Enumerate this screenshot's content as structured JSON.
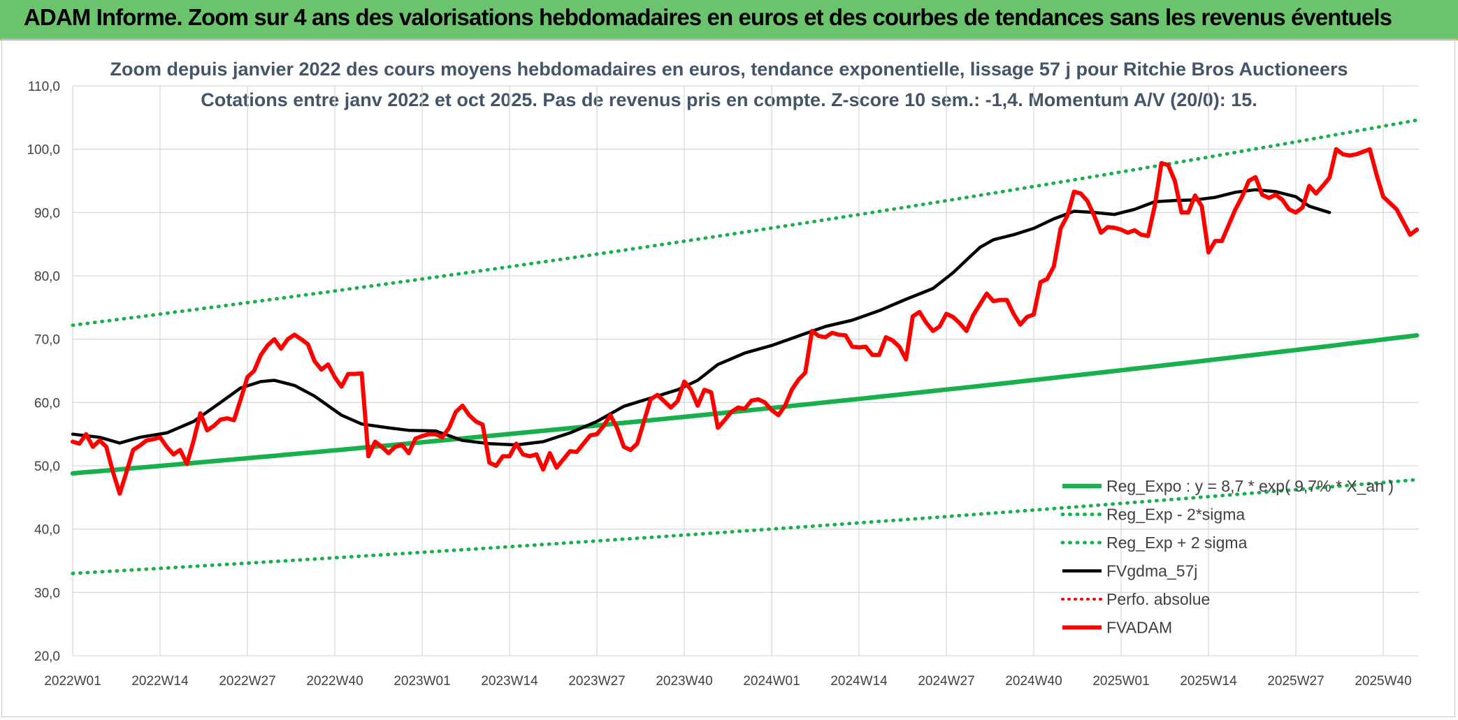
{
  "header": {
    "title": "ADAM Informe. Zoom sur 4 ans des valorisations hebdomadaires en euros et des courbes de tendances sans les revenus éventuels"
  },
  "chart_data": {
    "type": "line",
    "title": "Zoom depuis janvier 2022 des cours moyens hebdomadaires en euros, tendance exponentielle, lissage 57 j pour Ritchie Bros Auctioneers",
    "subtitle": "Cotations entre janv 2022 et oct 2025. Pas de revenus pris en compte. Z-score 10 sem.: -1,4. Momentum A/V (20/0): 15.",
    "ylim": [
      20,
      110
    ],
    "y_ticks": [
      "20,0",
      "30,0",
      "40,0",
      "50,0",
      "60,0",
      "70,0",
      "80,0",
      "90,0",
      "100,0",
      "110,0"
    ],
    "x_ticks": [
      "2022W01",
      "2022W14",
      "2022W27",
      "2022W40",
      "2023W01",
      "2023W14",
      "2023W27",
      "2023W40",
      "2024W01",
      "2024W14",
      "2024W27",
      "2024W40",
      "2025W01",
      "2025W14",
      "2025W27",
      "2025W40"
    ],
    "grid": true,
    "legend_position": "bottom-right",
    "colors": {
      "green": "#18b04c",
      "black": "#000000",
      "red": "#ff0000",
      "grid": "#d9d9d9",
      "title_text": "#44546a"
    },
    "legend": [
      {
        "label": "Reg_Expo : y = 8,7 * exp( 9,7% * X_an )",
        "style": "solid-green"
      },
      {
        "label": "Reg_Exp - 2*sigma",
        "style": "dotted-green"
      },
      {
        "label": "Reg_Exp + 2 sigma",
        "style": "dotted-green"
      },
      {
        "label": "FVgdma_57j",
        "style": "solid-black"
      },
      {
        "label": "Perfo. absolue",
        "style": "dotted-red"
      },
      {
        "label": "FVADAM",
        "style": "solid-red"
      }
    ],
    "series": [
      {
        "name": "Reg_Expo : y = 8,7 * exp( 9,7% * X_an )",
        "style": "solid-green",
        "start": 48.8,
        "end": 70.6
      },
      {
        "name": "Reg_Exp - 2*sigma",
        "style": "dotted-green",
        "start": 33.0,
        "end": 47.8
      },
      {
        "name": "Reg_Exp + 2 sigma",
        "style": "dotted-green",
        "start": 72.2,
        "end": 104.6
      },
      {
        "name": "FVgdma_57j",
        "style": "solid-black",
        "points": [
          [
            0,
            55
          ],
          [
            4,
            54.5
          ],
          [
            7,
            53.6
          ],
          [
            10,
            54.5
          ],
          [
            14,
            55.2
          ],
          [
            18,
            57
          ],
          [
            22,
            60
          ],
          [
            25,
            62.3
          ],
          [
            28,
            63.3
          ],
          [
            30,
            63.5
          ],
          [
            33,
            62.7
          ],
          [
            36,
            61
          ],
          [
            40,
            58
          ],
          [
            43,
            56.6
          ],
          [
            47,
            56
          ],
          [
            50,
            55.6
          ],
          [
            54,
            55.5
          ],
          [
            58,
            54
          ],
          [
            62,
            53.5
          ],
          [
            66,
            53.3
          ],
          [
            70,
            53.8
          ],
          [
            74,
            55.2
          ],
          [
            78,
            57
          ],
          [
            82,
            59.4
          ],
          [
            86,
            60.7
          ],
          [
            90,
            62
          ],
          [
            93,
            63.5
          ],
          [
            96,
            66
          ],
          [
            100,
            67.8
          ],
          [
            104,
            69
          ],
          [
            108,
            70.5
          ],
          [
            112,
            72
          ],
          [
            116,
            73
          ],
          [
            120,
            74.5
          ],
          [
            124,
            76.3
          ],
          [
            128,
            78
          ],
          [
            131,
            80.5
          ],
          [
            133,
            82.5
          ],
          [
            135,
            84.5
          ],
          [
            137,
            85.7
          ],
          [
            140,
            86.5
          ],
          [
            143,
            87.5
          ],
          [
            146,
            89
          ],
          [
            149,
            90.2
          ],
          [
            152,
            90
          ],
          [
            155,
            89.7
          ],
          [
            158,
            90.5
          ],
          [
            161,
            91.7
          ],
          [
            164,
            91.9
          ],
          [
            167,
            92
          ],
          [
            170,
            92.4
          ],
          [
            173,
            93.2
          ],
          [
            176,
            93.6
          ],
          [
            179,
            93.3
          ],
          [
            182,
            92.5
          ],
          [
            184,
            91
          ],
          [
            187,
            90
          ]
        ]
      },
      {
        "name": "FVADAM",
        "style": "solid-red",
        "points": [
          [
            0,
            53.8
          ],
          [
            1,
            53.5
          ],
          [
            2,
            55
          ],
          [
            3,
            53
          ],
          [
            4,
            54
          ],
          [
            5,
            53
          ],
          [
            6,
            49
          ],
          [
            7,
            45.6
          ],
          [
            8,
            49
          ],
          [
            9,
            52.5
          ],
          [
            10,
            53.2
          ],
          [
            11,
            54
          ],
          [
            12,
            54.2
          ],
          [
            13,
            54.5
          ],
          [
            14,
            53
          ],
          [
            15,
            51.8
          ],
          [
            16,
            52.5
          ],
          [
            17,
            50.3
          ],
          [
            18,
            54
          ],
          [
            19,
            58.3
          ],
          [
            20,
            55.6
          ],
          [
            21,
            56.3
          ],
          [
            22,
            57.3
          ],
          [
            23,
            57.5
          ],
          [
            24,
            57.2
          ],
          [
            25,
            60.5
          ],
          [
            26,
            64
          ],
          [
            27,
            65
          ],
          [
            28,
            67.5
          ],
          [
            29,
            69
          ],
          [
            30,
            70
          ],
          [
            31,
            68.5
          ],
          [
            32,
            70
          ],
          [
            33,
            70.7
          ],
          [
            34,
            70
          ],
          [
            35,
            69.2
          ],
          [
            36,
            66.5
          ],
          [
            37,
            65.2
          ],
          [
            38,
            66
          ],
          [
            39,
            64
          ],
          [
            40,
            62.5
          ],
          [
            41,
            64.5
          ],
          [
            42,
            64.5
          ],
          [
            43,
            64.6
          ],
          [
            44,
            51.5
          ],
          [
            45,
            53.8
          ],
          [
            46,
            53
          ],
          [
            47,
            52
          ],
          [
            48,
            53
          ],
          [
            49,
            53.3
          ],
          [
            50,
            52
          ],
          [
            51,
            54.3
          ],
          [
            52,
            54.7
          ],
          [
            53,
            55
          ],
          [
            54,
            55
          ],
          [
            55,
            54.5
          ],
          [
            56,
            56
          ],
          [
            57,
            58.5
          ],
          [
            58,
            59.5
          ],
          [
            59,
            58
          ],
          [
            60,
            57
          ],
          [
            61,
            56.5
          ],
          [
            62,
            50.5
          ],
          [
            63,
            50
          ],
          [
            64,
            51.5
          ],
          [
            65,
            51.5
          ],
          [
            66,
            53.5
          ],
          [
            67,
            51.8
          ],
          [
            68,
            51.5
          ],
          [
            69,
            51.8
          ],
          [
            70,
            49.4
          ],
          [
            71,
            52
          ],
          [
            72,
            49.7
          ],
          [
            73,
            51
          ],
          [
            74,
            52.3
          ],
          [
            75,
            52.2
          ],
          [
            76,
            53.5
          ],
          [
            77,
            54.8
          ],
          [
            78,
            55
          ],
          [
            79,
            56.3
          ],
          [
            80,
            58
          ],
          [
            81,
            56
          ],
          [
            82,
            53
          ],
          [
            83,
            52.5
          ],
          [
            84,
            53.5
          ],
          [
            85,
            57
          ],
          [
            86,
            60.5
          ],
          [
            87,
            61.2
          ],
          [
            88,
            60.2
          ],
          [
            89,
            59.2
          ],
          [
            90,
            60.2
          ],
          [
            91,
            63.3
          ],
          [
            92,
            62
          ],
          [
            93,
            59.5
          ],
          [
            94,
            62
          ],
          [
            95,
            61.6
          ],
          [
            96,
            56
          ],
          [
            97,
            57.2
          ],
          [
            98,
            58.5
          ],
          [
            99,
            59.2
          ],
          [
            100,
            59
          ],
          [
            101,
            60.3
          ],
          [
            102,
            60.5
          ],
          [
            103,
            60
          ],
          [
            104,
            58.8
          ],
          [
            105,
            58
          ],
          [
            106,
            59.5
          ],
          [
            107,
            62
          ],
          [
            108,
            63.6
          ],
          [
            109,
            64.7
          ],
          [
            110,
            71.3
          ],
          [
            111,
            70.5
          ],
          [
            112,
            70.3
          ],
          [
            113,
            71
          ],
          [
            114,
            70.7
          ],
          [
            115,
            70.6
          ],
          [
            116,
            68.8
          ],
          [
            117,
            68.7
          ],
          [
            118,
            68.8
          ],
          [
            119,
            67.5
          ],
          [
            120,
            67.5
          ],
          [
            121,
            70.3
          ],
          [
            122,
            69.8
          ],
          [
            123,
            68.8
          ],
          [
            124,
            66.8
          ],
          [
            125,
            73.6
          ],
          [
            126,
            74.3
          ],
          [
            127,
            72.6
          ],
          [
            128,
            71.3
          ],
          [
            129,
            72
          ],
          [
            130,
            74
          ],
          [
            131,
            73.5
          ],
          [
            132,
            72.5
          ],
          [
            133,
            71.3
          ],
          [
            134,
            73.8
          ],
          [
            135,
            75.5
          ],
          [
            136,
            77.2
          ],
          [
            137,
            76
          ],
          [
            138,
            76.2
          ],
          [
            139,
            76.2
          ],
          [
            140,
            74
          ],
          [
            141,
            72.3
          ],
          [
            142,
            73.5
          ],
          [
            143,
            73.9
          ],
          [
            144,
            79
          ],
          [
            145,
            79.5
          ],
          [
            146,
            81.5
          ],
          [
            147,
            87.5
          ],
          [
            148,
            89.5
          ],
          [
            149,
            93.3
          ],
          [
            150,
            93
          ],
          [
            151,
            91.8
          ],
          [
            152,
            89.5
          ],
          [
            153,
            86.8
          ],
          [
            154,
            87.7
          ],
          [
            155,
            87.6
          ],
          [
            156,
            87.3
          ],
          [
            157,
            86.8
          ],
          [
            158,
            87.2
          ],
          [
            159,
            86.5
          ],
          [
            160,
            86.3
          ],
          [
            161,
            91
          ],
          [
            162,
            97.8
          ],
          [
            163,
            97.5
          ],
          [
            164,
            95
          ],
          [
            165,
            90
          ],
          [
            166,
            90
          ],
          [
            167,
            92.7
          ],
          [
            168,
            91
          ],
          [
            169,
            83.7
          ],
          [
            170,
            85.5
          ],
          [
            171,
            85.5
          ],
          [
            172,
            88
          ],
          [
            173,
            90.5
          ],
          [
            174,
            92.5
          ],
          [
            175,
            95
          ],
          [
            176,
            95.6
          ],
          [
            177,
            92.8
          ],
          [
            178,
            92.3
          ],
          [
            179,
            92.8
          ],
          [
            180,
            92
          ],
          [
            181,
            90.5
          ],
          [
            182,
            90
          ],
          [
            183,
            90.8
          ],
          [
            184,
            94.2
          ],
          [
            185,
            93
          ],
          [
            186,
            94.2
          ],
          [
            187,
            95.5
          ],
          [
            188,
            100
          ],
          [
            189,
            99.2
          ],
          [
            190,
            99
          ],
          [
            191,
            99.2
          ],
          [
            192,
            99.6
          ],
          [
            193,
            100
          ],
          [
            194,
            96
          ],
          [
            195,
            92.5
          ],
          [
            196,
            91.5
          ],
          [
            197,
            90.5
          ],
          [
            198,
            88.5
          ],
          [
            199,
            86.5
          ],
          [
            200,
            87.3
          ]
        ]
      }
    ]
  }
}
